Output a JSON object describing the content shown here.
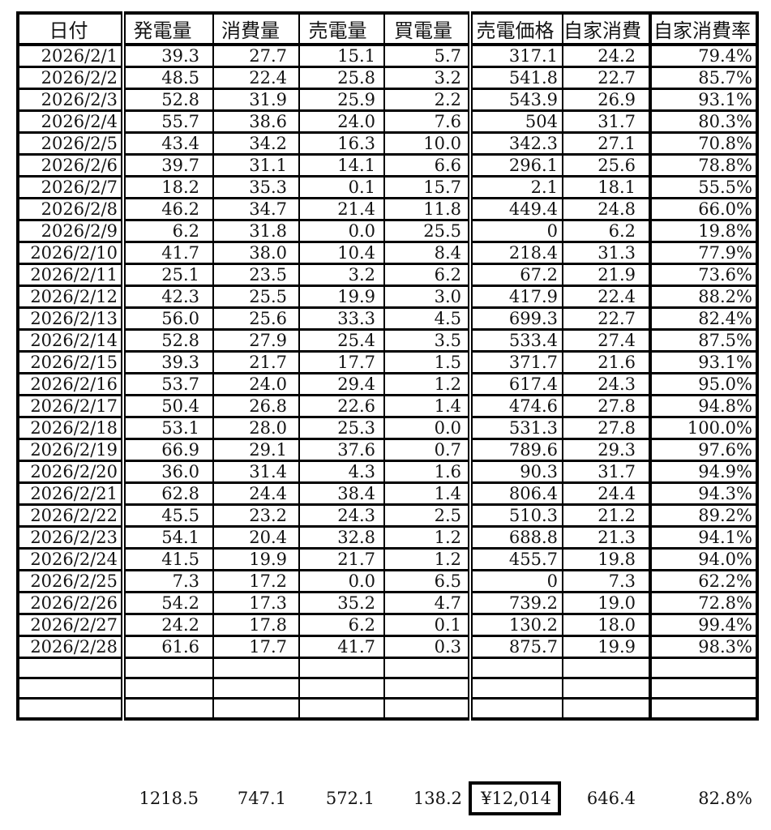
{
  "table": {
    "headers": [
      "日付",
      "発電量",
      "消費量",
      "売電量",
      "買電量",
      "売電価格",
      "自家消費",
      "自家消費率"
    ],
    "column_names": [
      "date",
      "generation",
      "consumption",
      "sold",
      "bought",
      "sale-price",
      "self-consumption",
      "self-consumption-rate"
    ],
    "rows": [
      [
        "2026/2/1",
        "39.3",
        "27.7",
        "15.1",
        "5.7",
        "317.1",
        "24.2",
        "79.4%"
      ],
      [
        "2026/2/2",
        "48.5",
        "22.4",
        "25.8",
        "3.2",
        "541.8",
        "22.7",
        "85.7%"
      ],
      [
        "2026/2/3",
        "52.8",
        "31.9",
        "25.9",
        "2.2",
        "543.9",
        "26.9",
        "93.1%"
      ],
      [
        "2026/2/4",
        "55.7",
        "38.6",
        "24.0",
        "7.6",
        "504",
        "31.7",
        "80.3%"
      ],
      [
        "2026/2/5",
        "43.4",
        "34.2",
        "16.3",
        "10.0",
        "342.3",
        "27.1",
        "70.8%"
      ],
      [
        "2026/2/6",
        "39.7",
        "31.1",
        "14.1",
        "6.6",
        "296.1",
        "25.6",
        "78.8%"
      ],
      [
        "2026/2/7",
        "18.2",
        "35.3",
        "0.1",
        "15.7",
        "2.1",
        "18.1",
        "55.5%"
      ],
      [
        "2026/2/8",
        "46.2",
        "34.7",
        "21.4",
        "11.8",
        "449.4",
        "24.8",
        "66.0%"
      ],
      [
        "2026/2/9",
        "6.2",
        "31.8",
        "0.0",
        "25.5",
        "0",
        "6.2",
        "19.8%"
      ],
      [
        "2026/2/10",
        "41.7",
        "38.0",
        "10.4",
        "8.4",
        "218.4",
        "31.3",
        "77.9%"
      ],
      [
        "2026/2/11",
        "25.1",
        "23.5",
        "3.2",
        "6.2",
        "67.2",
        "21.9",
        "73.6%"
      ],
      [
        "2026/2/12",
        "42.3",
        "25.5",
        "19.9",
        "3.0",
        "417.9",
        "22.4",
        "88.2%"
      ],
      [
        "2026/2/13",
        "56.0",
        "25.6",
        "33.3",
        "4.5",
        "699.3",
        "22.7",
        "82.4%"
      ],
      [
        "2026/2/14",
        "52.8",
        "27.9",
        "25.4",
        "3.5",
        "533.4",
        "27.4",
        "87.5%"
      ],
      [
        "2026/2/15",
        "39.3",
        "21.7",
        "17.7",
        "1.5",
        "371.7",
        "21.6",
        "93.1%"
      ],
      [
        "2026/2/16",
        "53.7",
        "24.0",
        "29.4",
        "1.2",
        "617.4",
        "24.3",
        "95.0%"
      ],
      [
        "2026/2/17",
        "50.4",
        "26.8",
        "22.6",
        "1.4",
        "474.6",
        "27.8",
        "94.8%"
      ],
      [
        "2026/2/18",
        "53.1",
        "28.0",
        "25.3",
        "0.0",
        "531.3",
        "27.8",
        "100.0%"
      ],
      [
        "2026/2/19",
        "66.9",
        "29.1",
        "37.6",
        "0.7",
        "789.6",
        "29.3",
        "97.6%"
      ],
      [
        "2026/2/20",
        "36.0",
        "31.4",
        "4.3",
        "1.6",
        "90.3",
        "31.7",
        "94.9%"
      ],
      [
        "2026/2/21",
        "62.8",
        "24.4",
        "38.4",
        "1.4",
        "806.4",
        "24.4",
        "94.3%"
      ],
      [
        "2026/2/22",
        "45.5",
        "23.2",
        "24.3",
        "2.5",
        "510.3",
        "21.2",
        "89.2%"
      ],
      [
        "2026/2/23",
        "54.1",
        "20.4",
        "32.8",
        "1.2",
        "688.8",
        "21.3",
        "94.1%"
      ],
      [
        "2026/2/24",
        "41.5",
        "19.9",
        "21.7",
        "1.2",
        "455.7",
        "19.8",
        "94.0%"
      ],
      [
        "2026/2/25",
        "7.3",
        "17.2",
        "0.0",
        "6.5",
        "0",
        "7.3",
        "62.2%"
      ],
      [
        "2026/2/26",
        "54.2",
        "17.3",
        "35.2",
        "4.7",
        "739.2",
        "19.0",
        "72.8%"
      ],
      [
        "2026/2/27",
        "24.2",
        "17.8",
        "6.2",
        "0.1",
        "130.2",
        "18.0",
        "99.4%"
      ],
      [
        "2026/2/28",
        "61.6",
        "17.7",
        "41.7",
        "0.3",
        "875.7",
        "19.9",
        "98.3%"
      ]
    ],
    "empty_row_count": 3
  },
  "totals": {
    "generation": "1218.5",
    "consumption": "747.1",
    "sold": "572.1",
    "bought": "138.2",
    "sale_price": "¥12,014",
    "self_consumption": "646.4",
    "self_consumption_rate": "82.8%"
  }
}
